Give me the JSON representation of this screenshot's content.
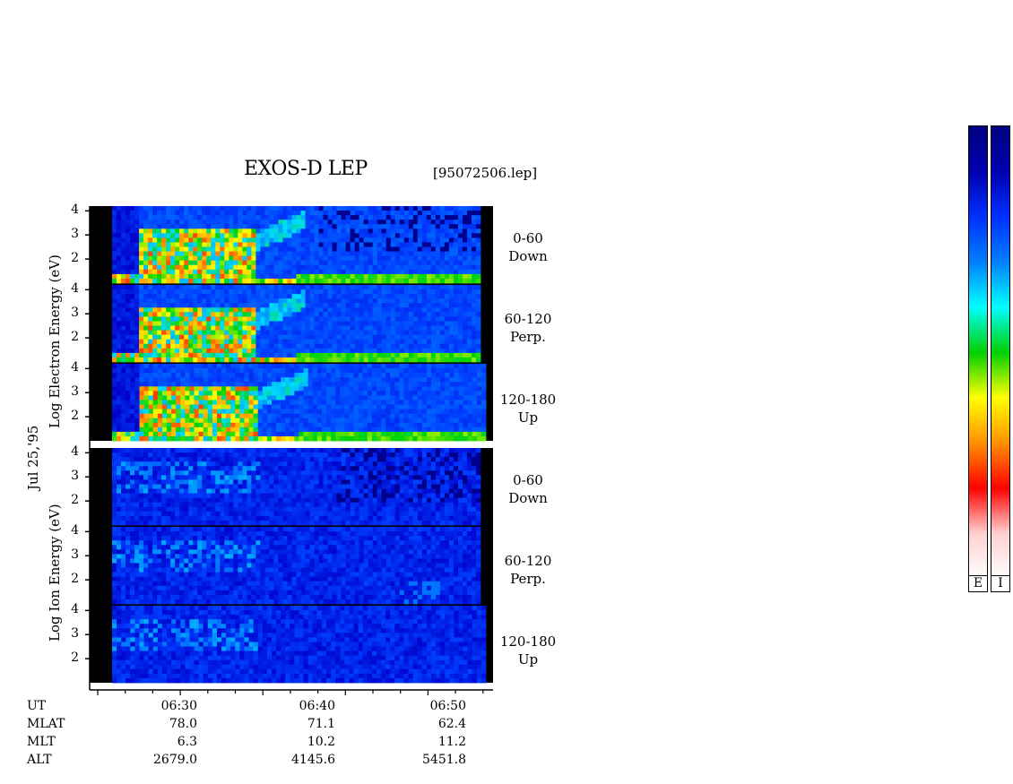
{
  "chart_data": {
    "type": "heatmap",
    "title": "EXOS-D LEP",
    "filename": "[95072506.lep]",
    "date_label": "Jul 25,'95",
    "electron_ylabel": [
      "Log",
      "Electron",
      "Energy",
      "(eV)"
    ],
    "ion_ylabel": [
      "Log",
      "Ion",
      "Energy",
      "(eV)"
    ],
    "y_ticks": [
      "2",
      "3",
      "4"
    ],
    "x_ticks": [
      "06:30",
      "06:40",
      "06:50"
    ],
    "panels": [
      {
        "species": "Electron",
        "channel": "0-60",
        "direction": "Down"
      },
      {
        "species": "Electron",
        "channel": "60-120",
        "direction": "Perp."
      },
      {
        "species": "Electron",
        "channel": "120-180",
        "direction": "Up"
      },
      {
        "species": "Ion",
        "channel": "0-60",
        "direction": "Down"
      },
      {
        "species": "Ion",
        "channel": "60-120",
        "direction": "Perp."
      },
      {
        "species": "Ion",
        "channel": "120-180",
        "direction": "Up"
      }
    ],
    "orbit_table": {
      "rows": [
        {
          "label": "UT",
          "values": [
            "06:30",
            "06:40",
            "06:50"
          ]
        },
        {
          "label": "MLAT",
          "values": [
            "78.0",
            "71.1",
            "62.4"
          ]
        },
        {
          "label": "MLT",
          "values": [
            "6.3",
            "10.2",
            "11.2"
          ]
        },
        {
          "label": "ALT",
          "values": [
            "2679.0",
            "4145.6",
            "5451.8"
          ]
        }
      ]
    },
    "colorbar_labels": [
      "E",
      "I"
    ],
    "colormap": [
      "#ffffff",
      "#ff0000",
      "#ff9000",
      "#ffff00",
      "#00d000",
      "#00ffff",
      "#0060ff",
      "#0000c0",
      "#000080"
    ]
  }
}
